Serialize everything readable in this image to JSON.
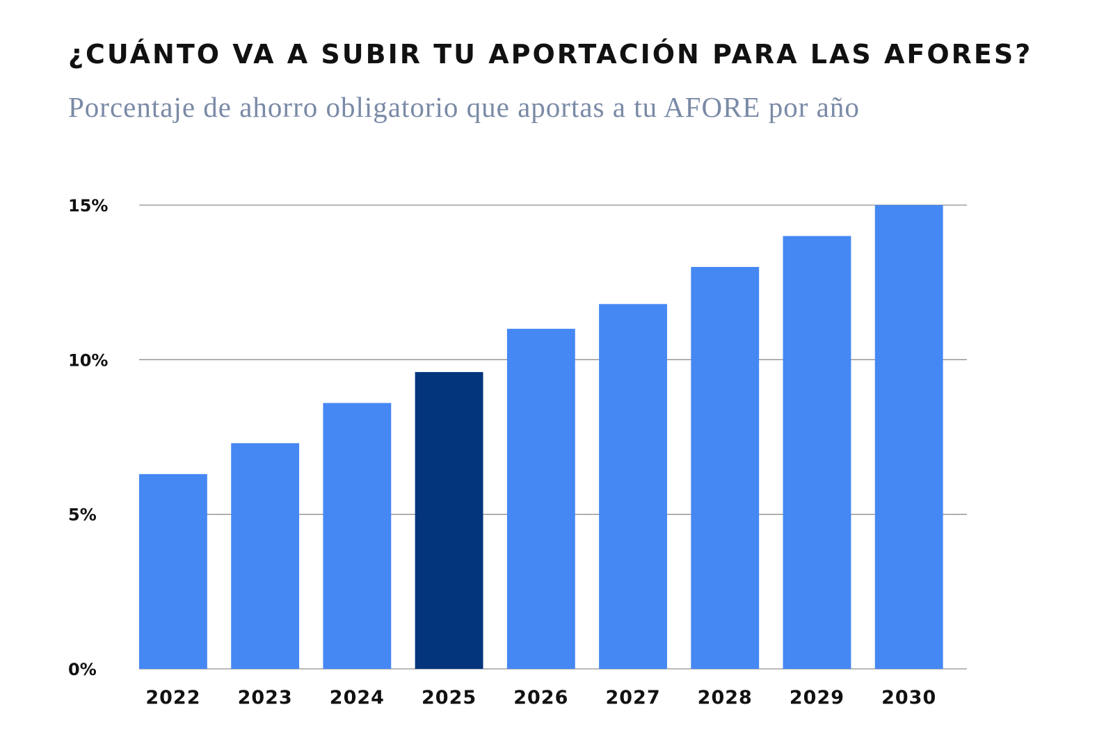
{
  "chart_data": {
    "type": "bar",
    "title": "¿CUÁNTO VA A SUBIR TU APORTACIÓN PARA LAS AFORES?",
    "subtitle": "Porcentaje de ahorro obligatorio que aportas a tu AFORE por año",
    "xlabel": "",
    "ylabel": "",
    "categories": [
      "2022",
      "2023",
      "2024",
      "2025",
      "2026",
      "2027",
      "2028",
      "2029",
      "2030"
    ],
    "values": [
      6.3,
      7.3,
      8.6,
      9.6,
      11.0,
      11.8,
      13.0,
      14.0,
      15.0
    ],
    "highlight": "2025",
    "ylim": [
      0,
      15
    ],
    "yticks": [
      0,
      5,
      10,
      15
    ],
    "ytick_labels": [
      "0%",
      "5%",
      "10%",
      "15%"
    ],
    "grid": true,
    "colors": {
      "bar": "#4587f3",
      "highlight": "#02357c",
      "grid": "#8f8f8f",
      "title": "#111111",
      "subtitle": "#7a8aa6"
    }
  }
}
